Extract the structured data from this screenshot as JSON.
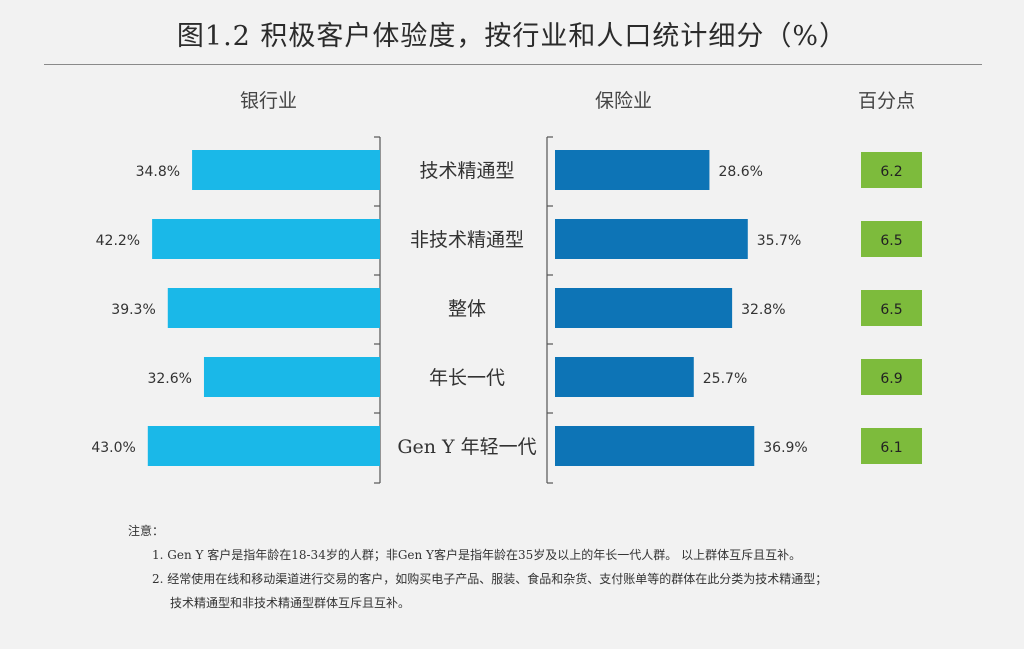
{
  "title": "图1.2 积极客户体验度，按行业和人口统计细分（%）",
  "headers": {
    "bank": "银行业",
    "insurance": "保险业",
    "points": "百分点"
  },
  "colors": {
    "bank": "#1ab8e8",
    "insurance": "#0d74b6",
    "points": "#7dbb3c"
  },
  "chart_data": {
    "type": "bar",
    "categories": [
      "技术精通型",
      "非技术精通型",
      "整体",
      "年长一代",
      "Gen Y 年轻一代"
    ],
    "series": [
      {
        "name": "银行业",
        "values": [
          34.8,
          42.2,
          39.3,
          32.6,
          43.0
        ],
        "labels": [
          "34.8%",
          "42.2%",
          "39.3%",
          "32.6%",
          "43.0%"
        ]
      },
      {
        "name": "保险业",
        "values": [
          28.6,
          35.7,
          32.8,
          25.7,
          36.9
        ],
        "labels": [
          "28.6%",
          "35.7%",
          "32.8%",
          "25.7%",
          "36.9%"
        ]
      },
      {
        "name": "百分点",
        "values": [
          6.2,
          6.5,
          6.5,
          6.9,
          6.1
        ],
        "labels": [
          "6.2",
          "6.5",
          "6.5",
          "6.9",
          "6.1"
        ]
      }
    ]
  },
  "notes": {
    "heading": "注意：",
    "line1": "1. Gen Y 客户是指年龄在18-34岁的人群；非Gen Y客户是指年龄在35岁及以上的年长一代人群。 以上群体互斥且互补。",
    "line2": "2. 经常使用在线和移动渠道进行交易的客户，如购买电子产品、服装、食品和杂货、支付账单等的群体在此分类为技术精通型；",
    "line3": "技术精通型和非技术精通型群体互斥且互补。"
  }
}
